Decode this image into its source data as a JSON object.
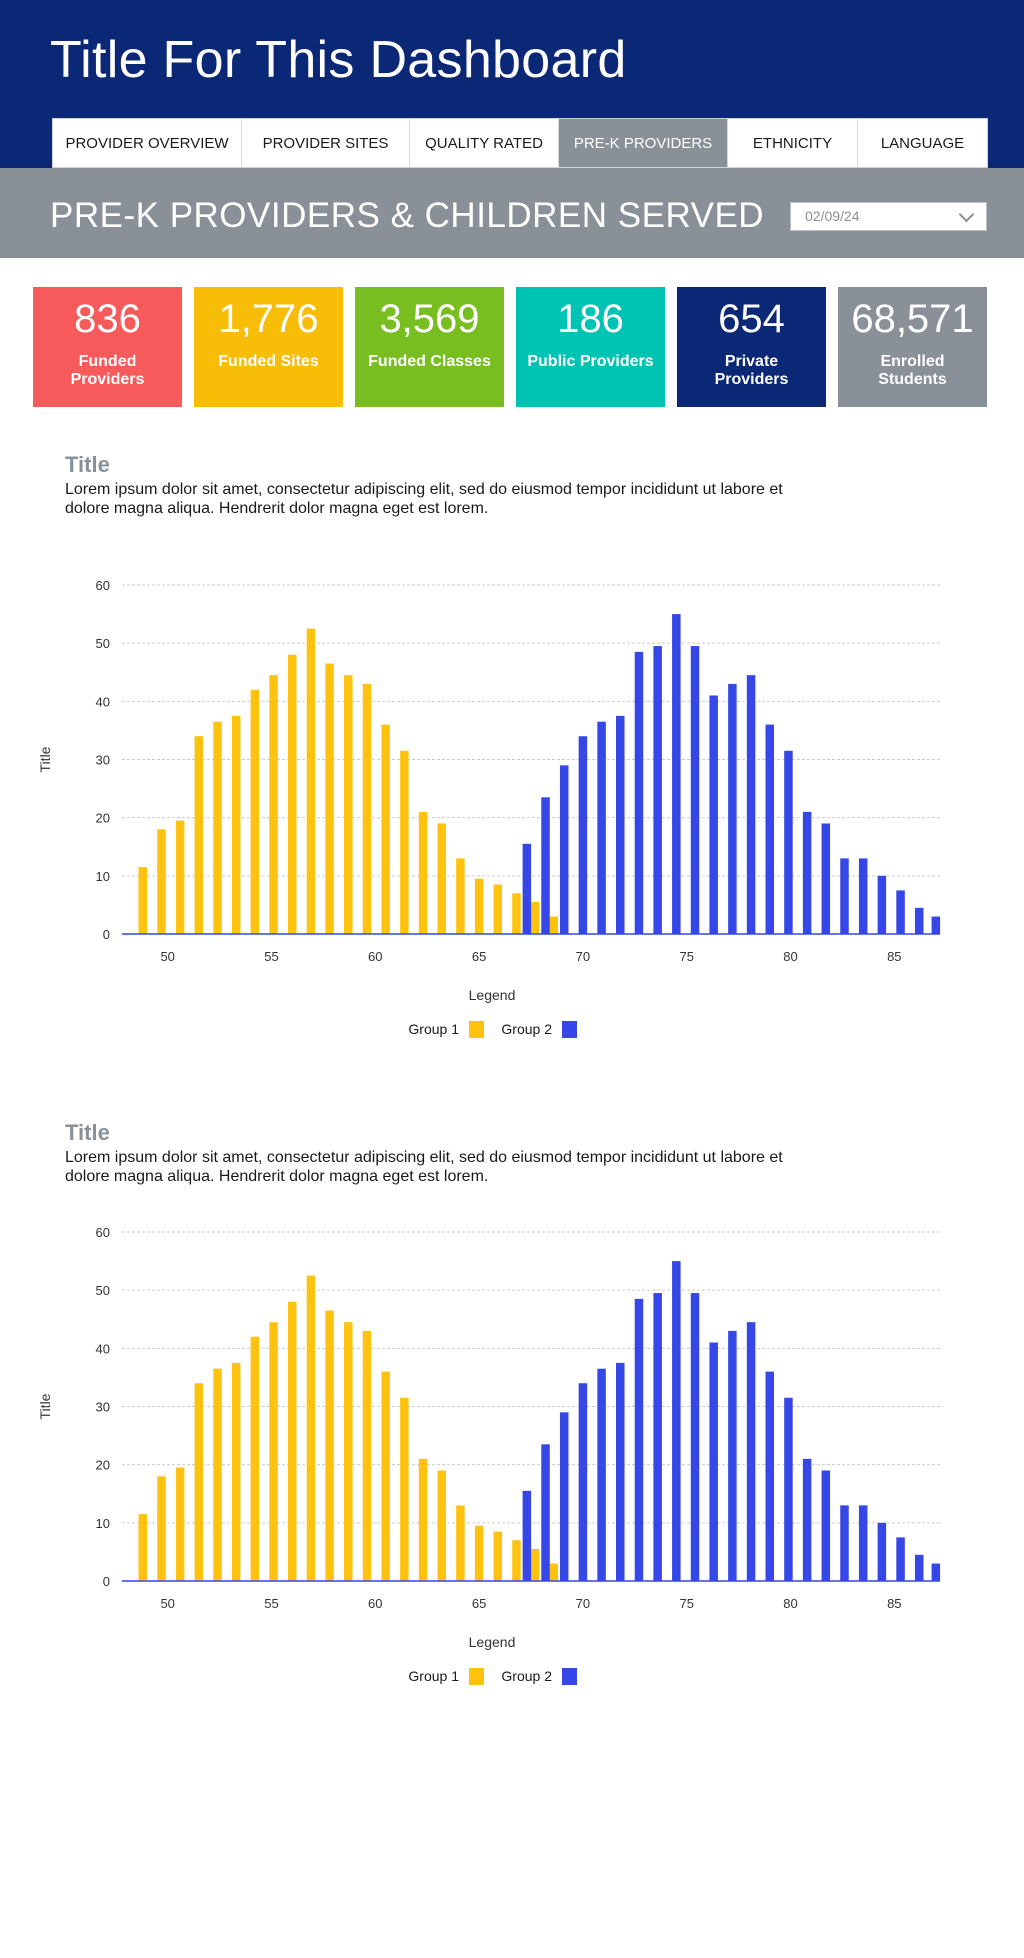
{
  "header": {
    "title": "Title For This Dashboard",
    "tabs": [
      {
        "label": "PROVIDER OVERVIEW",
        "active": false
      },
      {
        "label": "PROVIDER SITES",
        "active": false
      },
      {
        "label": "QUALITY RATED",
        "active": false
      },
      {
        "label": "PRE-K PROVIDERS",
        "active": true
      },
      {
        "label": "ETHNICITY",
        "active": false
      },
      {
        "label": "LANGUAGE",
        "active": false
      }
    ]
  },
  "subheader": {
    "title": "PRE-K PROVIDERS & CHILDREN SERVED",
    "date_value": "02/09/24",
    "date_icon": "chevron-down-icon"
  },
  "cards": [
    {
      "value": "836",
      "label": "Funded Providers",
      "color": "#f65a5b"
    },
    {
      "value": "1,776",
      "label": "Funded Sites",
      "color": "#f7bd07"
    },
    {
      "value": "3,569",
      "label": "Funded Classes",
      "color": "#78be21"
    },
    {
      "value": "186",
      "label": "Public Providers",
      "color": "#00c4b3"
    },
    {
      "value": "654",
      "label": "Private Providers",
      "color": "#0a2876"
    },
    {
      "value": "68,571",
      "label": "Enrolled Students",
      "color": "#8a9098"
    }
  ],
  "sections": [
    {
      "title": "Title",
      "description": "Lorem ipsum dolor sit amet, consectetur adipiscing elit, sed do eiusmod tempor incididunt ut labore et dolore magna aliqua. Hendrerit dolor magna eget est lorem."
    },
    {
      "title": "Title",
      "description": "Lorem ipsum dolor sit amet, consectetur adipiscing elit, sed do eiusmod tempor incididunt ut labore et dolore magna aliqua. Hendrerit dolor magna eget est lorem."
    }
  ],
  "chart_data": [
    {
      "type": "bar",
      "xlabel": "Legend",
      "ylabel": "Title",
      "xlim": [
        47.8,
        87.2
      ],
      "ylim": [
        0,
        60
      ],
      "x_ticks": [
        50,
        55,
        60,
        65,
        70,
        75,
        80,
        85
      ],
      "y_ticks": [
        0,
        10,
        20,
        30,
        40,
        50,
        60
      ],
      "grid": true,
      "legend_position": "bottom-center",
      "series": [
        {
          "name": "Group 1",
          "color": "#ffc20e",
          "x": [
            48.8,
            49.7,
            50.6,
            51.5,
            52.4,
            53.3,
            54.2,
            55.1,
            56.0,
            56.9,
            57.8,
            58.7,
            59.6,
            60.5,
            61.4,
            62.3,
            63.2,
            64.1,
            65.0,
            65.9,
            66.8,
            67.7,
            68.6
          ],
          "values": [
            11.5,
            18,
            19.5,
            34,
            36.5,
            37.5,
            42,
            44.5,
            48,
            52.5,
            46.5,
            44.5,
            43,
            36,
            31.5,
            21,
            19,
            13,
            9.5,
            8.5,
            7,
            5.5,
            3
          ]
        },
        {
          "name": "Group 2",
          "color": "#3547e6",
          "x": [
            67.3,
            68.2,
            69.1,
            70.0,
            70.9,
            71.8,
            72.7,
            73.6,
            74.5,
            75.4,
            76.3,
            77.2,
            78.1,
            79.0,
            79.9,
            80.8,
            81.7,
            82.6,
            83.5,
            84.4,
            85.3,
            86.2
          ],
          "values": [
            15.5,
            23.5,
            29,
            34,
            36.5,
            37.5,
            48.5,
            49.5,
            55,
            49.5,
            41,
            43,
            44.5,
            36,
            31.5,
            21,
            19,
            13,
            13,
            10,
            7.5,
            4.5
          ]
        },
        {
          "name": "",
          "color": "#3547e6",
          "x": [
            87.0
          ],
          "values": [
            3
          ]
        }
      ]
    },
    {
      "type": "bar",
      "xlabel": "Legend",
      "ylabel": "Title",
      "xlim": [
        47.8,
        87.2
      ],
      "ylim": [
        0,
        60
      ],
      "x_ticks": [
        50,
        55,
        60,
        65,
        70,
        75,
        80,
        85
      ],
      "y_ticks": [
        0,
        10,
        20,
        30,
        40,
        50,
        60
      ],
      "grid": true,
      "legend_position": "bottom-center",
      "series": [
        {
          "name": "Group 1",
          "color": "#ffc20e",
          "x": [
            48.8,
            49.7,
            50.6,
            51.5,
            52.4,
            53.3,
            54.2,
            55.1,
            56.0,
            56.9,
            57.8,
            58.7,
            59.6,
            60.5,
            61.4,
            62.3,
            63.2,
            64.1,
            65.0,
            65.9,
            66.8,
            67.7,
            68.6
          ],
          "values": [
            11.5,
            18,
            19.5,
            34,
            36.5,
            37.5,
            42,
            44.5,
            48,
            52.5,
            46.5,
            44.5,
            43,
            36,
            31.5,
            21,
            19,
            13,
            9.5,
            8.5,
            7,
            5.5,
            3
          ]
        },
        {
          "name": "Group 2",
          "color": "#3547e6",
          "x": [
            67.3,
            68.2,
            69.1,
            70.0,
            70.9,
            71.8,
            72.7,
            73.6,
            74.5,
            75.4,
            76.3,
            77.2,
            78.1,
            79.0,
            79.9,
            80.8,
            81.7,
            82.6,
            83.5,
            84.4,
            85.3,
            86.2
          ],
          "values": [
            15.5,
            23.5,
            29,
            34,
            36.5,
            37.5,
            48.5,
            49.5,
            55,
            49.5,
            41,
            43,
            44.5,
            36,
            31.5,
            21,
            19,
            13,
            13,
            10,
            7.5,
            4.5
          ]
        },
        {
          "name": "",
          "color": "#3547e6",
          "x": [
            87.0
          ],
          "values": [
            3
          ]
        }
      ]
    }
  ]
}
